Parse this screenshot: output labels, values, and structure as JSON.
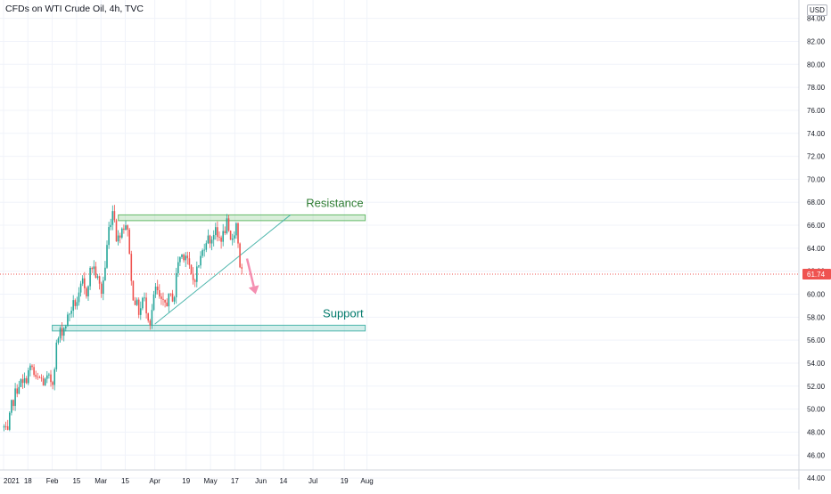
{
  "header": {
    "title": "CFDs on WTI Crude Oil, 4h, TVC",
    "currency": "USD"
  },
  "chart_data": {
    "type": "candlestick",
    "title": "CFDs on WTI Crude Oil, 4h, TVC",
    "price_axis": {
      "ticks": [
        "84.00",
        "82.00",
        "80.00",
        "78.00",
        "76.00",
        "74.00",
        "72.00",
        "70.00",
        "68.00",
        "66.00",
        "64.00",
        "62.00",
        "60.00",
        "58.00",
        "56.00",
        "54.00",
        "52.00",
        "50.00",
        "48.00",
        "46.00",
        "44.00"
      ],
      "range": [
        43.0,
        85.6
      ]
    },
    "time_axis": {
      "ticks": [
        "2021",
        "18",
        "Feb",
        "15",
        "Mar",
        "15",
        "Apr",
        "19",
        "May",
        "17",
        "Jun",
        "14",
        "Jul",
        "19",
        "Aug"
      ],
      "ticks_iso": [
        "2021-01-04",
        "2021-01-18",
        "2021-02-01",
        "2021-02-15",
        "2021-03-01",
        "2021-03-15",
        "2021-04-01",
        "2021-04-19",
        "2021-05-03",
        "2021-05-17",
        "2021-06-01",
        "2021-06-14",
        "2021-07-01",
        "2021-07-19",
        "2021-08-01"
      ]
    },
    "last_price": {
      "label": "61.74",
      "value": 61.74,
      "color": "#ef5350"
    },
    "price_path": [
      [
        "2021-01-04",
        48.4
      ],
      [
        "2021-01-06",
        47.6
      ],
      [
        "2021-01-08",
        50.1
      ],
      [
        "2021-01-11",
        51.6
      ],
      [
        "2021-01-13",
        52.4
      ],
      [
        "2021-01-15",
        52.0
      ],
      [
        "2021-01-18",
        53.2
      ],
      [
        "2021-01-20",
        53.7
      ],
      [
        "2021-01-22",
        52.4
      ],
      [
        "2021-01-25",
        52.7
      ],
      [
        "2021-01-27",
        52.2
      ],
      [
        "2021-01-29",
        52.6
      ],
      [
        "2021-02-01",
        52.4
      ],
      [
        "2021-02-03",
        55.4
      ],
      [
        "2021-02-05",
        56.6
      ],
      [
        "2021-02-08",
        57.2
      ],
      [
        "2021-02-10",
        58.1
      ],
      [
        "2021-02-12",
        58.9
      ],
      [
        "2021-02-16",
        59.6
      ],
      [
        "2021-02-18",
        61.1
      ],
      [
        "2021-02-20",
        59.8
      ],
      [
        "2021-02-22",
        61.7
      ],
      [
        "2021-02-24",
        62.6
      ],
      [
        "2021-02-26",
        61.6
      ],
      [
        "2021-03-01",
        60.2
      ],
      [
        "2021-03-03",
        62.1
      ],
      [
        "2021-03-05",
        65.5
      ],
      [
        "2021-03-08",
        67.7
      ],
      [
        "2021-03-10",
        64.4
      ],
      [
        "2021-03-12",
        65.6
      ],
      [
        "2021-03-15",
        66.2
      ],
      [
        "2021-03-17",
        64.4
      ],
      [
        "2021-03-18",
        61.2
      ],
      [
        "2021-03-19",
        60.1
      ],
      [
        "2021-03-23",
        58.3
      ],
      [
        "2021-03-25",
        59.8
      ],
      [
        "2021-03-29",
        57.6
      ],
      [
        "2021-03-31",
        59.4
      ],
      [
        "2021-04-01",
        60.6
      ],
      [
        "2021-04-05",
        58.9
      ],
      [
        "2021-04-07",
        59.3
      ],
      [
        "2021-04-09",
        59.6
      ],
      [
        "2021-04-12",
        59.9
      ],
      [
        "2021-04-14",
        62.9
      ],
      [
        "2021-04-16",
        63.4
      ],
      [
        "2021-04-19",
        63.6
      ],
      [
        "2021-04-21",
        61.7
      ],
      [
        "2021-04-23",
        61.2
      ],
      [
        "2021-04-26",
        62.6
      ],
      [
        "2021-04-28",
        63.6
      ],
      [
        "2021-04-30",
        64.9
      ],
      [
        "2021-05-03",
        64.7
      ],
      [
        "2021-05-05",
        65.6
      ],
      [
        "2021-05-07",
        64.8
      ],
      [
        "2021-05-10",
        65.1
      ],
      [
        "2021-05-12",
        66.2
      ],
      [
        "2021-05-14",
        64.3
      ],
      [
        "2021-05-17",
        65.8
      ],
      [
        "2021-05-18",
        66.4
      ],
      [
        "2021-05-19",
        63.4
      ],
      [
        "2021-05-20",
        62.2
      ],
      [
        "2021-05-21",
        61.74
      ]
    ],
    "annotations": {
      "resistance": {
        "label": "Resistance",
        "top": 66.9,
        "bottom": 66.4,
        "start": "2021-03-11",
        "end": "2021-07-31",
        "color": "#66bb6a"
      },
      "support": {
        "label": "Support",
        "top": 57.3,
        "bottom": 56.8,
        "start": "2021-02-01",
        "end": "2021-07-31",
        "color": "#4db6ac"
      },
      "trendline": {
        "start": [
          "2021-04-01",
          57.4
        ],
        "end": [
          "2021-06-18",
          66.9
        ],
        "color": "#4db6ac"
      },
      "projection_arrow": {
        "start": [
          "2021-05-24",
          63.1
        ],
        "end": [
          "2021-05-29",
          60.0
        ],
        "color": "#f48fb1"
      }
    },
    "colors": {
      "up": "#26a69a",
      "down": "#ef5350",
      "grid": "#f0f3fa",
      "axis_text": "#131722"
    },
    "grid": true
  }
}
